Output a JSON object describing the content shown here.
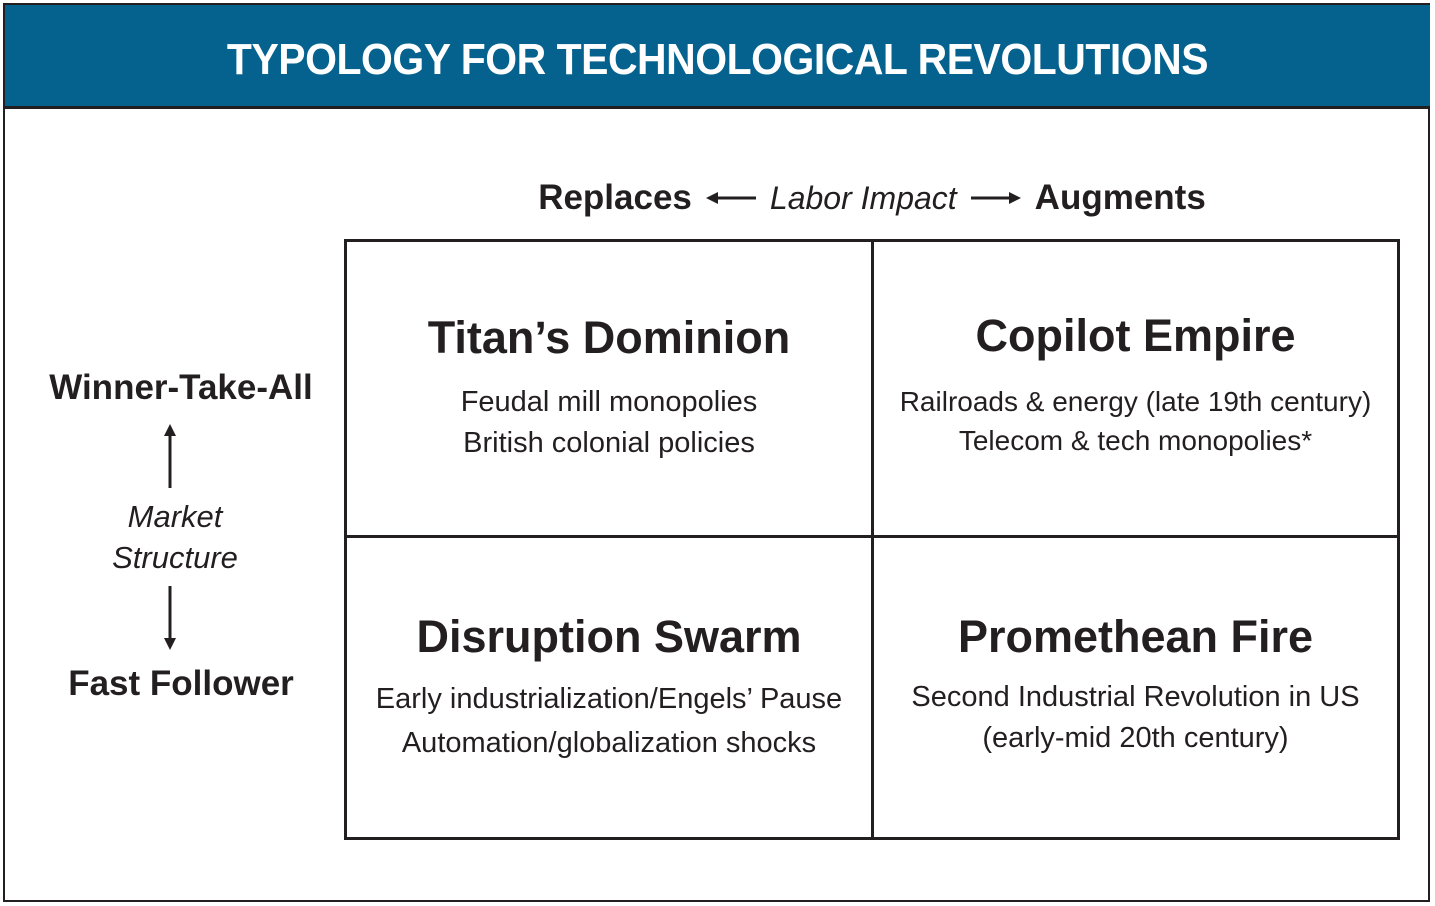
{
  "header": {
    "title": "TYPOLOGY FOR TECHNOLOGICAL REVOLUTIONS"
  },
  "axes": {
    "horizontal": {
      "left_end": "Replaces",
      "label": "Labor Impact",
      "right_end": "Augments"
    },
    "vertical": {
      "top_end": "Winner-Take-All",
      "label_line1": "Market",
      "label_line2": "Structure",
      "bottom_end": "Fast Follower"
    }
  },
  "quadrants": {
    "top_left": {
      "title": "Titan’s Dominion",
      "examples": [
        "Feudal mill monopolies",
        "British colonial policies"
      ]
    },
    "top_right": {
      "title": "Copilot Empire",
      "examples": [
        "Railroads & energy (late 19th century)",
        "Telecom & tech monopolies*"
      ]
    },
    "bottom_left": {
      "title": "Disruption Swarm",
      "examples": [
        "Early industrialization/Engels’ Pause",
        "Automation/globalization shocks"
      ]
    },
    "bottom_right": {
      "title": "Promethean Fire",
      "examples": [
        "Second Industrial Revolution in US",
        "(early-mid 20th century)"
      ]
    }
  },
  "colors": {
    "banner": "#05628f",
    "ink": "#231f20",
    "banner_text": "#ffffff"
  }
}
